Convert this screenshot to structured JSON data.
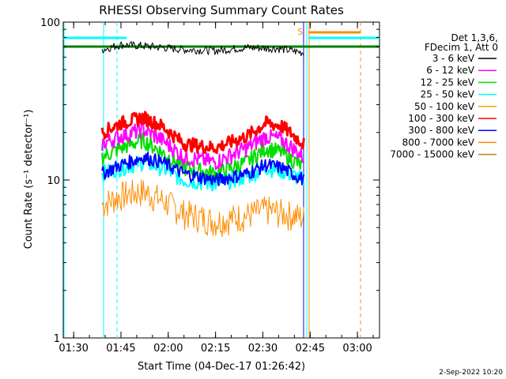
{
  "chart_data": {
    "type": "line",
    "title": "RHESSI Observing Summary Count Rates",
    "xlabel": "Start Time (04-Dec-17 01:26:42)",
    "ylabel": "Count Rate (s⁻¹ detector⁻¹)",
    "ylog": true,
    "xlim": [
      "01:26:42",
      "03:07:00"
    ],
    "ylim": [
      1,
      100
    ],
    "x_ticks": [
      "01:30",
      "01:45",
      "02:00",
      "02:15",
      "02:30",
      "02:45",
      "03:00"
    ],
    "y_ticks": [
      "1",
      "10",
      "100"
    ],
    "legend_header": [
      "Det 1,3,6,",
      "FDecim 1, Att 0"
    ],
    "legend_position": "right",
    "series": [
      {
        "name": "3 - 6 keV",
        "color": "#000000",
        "x": [
          "01:39",
          "01:45",
          "01:55",
          "02:05",
          "02:15",
          "02:25",
          "02:35",
          "02:43"
        ],
        "values": [
          67,
          72,
          70,
          67,
          66,
          69,
          68,
          64
        ]
      },
      {
        "name": "6 - 12 keV",
        "color": "#ff00ff",
        "x": [
          "01:39",
          "01:45",
          "01:52",
          "01:58",
          "02:05",
          "02:15",
          "02:25",
          "02:31",
          "02:36",
          "02:43"
        ],
        "values": [
          17,
          19,
          21,
          18,
          14,
          13,
          16,
          19,
          18,
          14
        ]
      },
      {
        "name": "12 - 25 keV",
        "color": "#00dd00",
        "x": [
          "01:39",
          "01:45",
          "01:52",
          "01:58",
          "02:05",
          "02:15",
          "02:25",
          "02:31",
          "02:36",
          "02:43"
        ],
        "values": [
          14,
          16,
          18,
          15,
          12,
          11,
          13,
          16,
          15,
          12
        ]
      },
      {
        "name": "25 - 50 keV",
        "color": "#00ffff",
        "x": [
          "01:39",
          "01:45",
          "01:52",
          "01:58",
          "02:05",
          "02:15",
          "02:25",
          "02:31",
          "02:36",
          "02:43"
        ],
        "values": [
          11,
          12,
          13,
          12,
          10,
          9.5,
          10.5,
          12,
          11.5,
          10
        ]
      },
      {
        "name": "50 - 100 keV",
        "color": "#ffa500",
        "x": [],
        "values": []
      },
      {
        "name": "100 - 300 keV",
        "color": "#ff0000",
        "x": [
          "01:39",
          "01:45",
          "01:52",
          "01:58",
          "02:05",
          "02:15",
          "02:25",
          "02:31",
          "02:36",
          "02:43"
        ],
        "values": [
          20,
          23,
          25,
          22,
          17,
          16,
          19,
          23,
          22,
          17
        ]
      },
      {
        "name": "300 - 800 keV",
        "color": "#0000ff",
        "x": [
          "01:39",
          "01:45",
          "01:52",
          "01:58",
          "02:05",
          "02:15",
          "02:25",
          "02:31",
          "02:36",
          "02:43"
        ],
        "values": [
          11,
          12.5,
          14,
          13,
          11,
          10,
          11,
          12.5,
          12,
          10
        ]
      },
      {
        "name": "800 - 7000 keV",
        "color": "#ff8c00",
        "x": [
          "01:39",
          "01:45",
          "01:52",
          "01:58",
          "02:05",
          "02:15",
          "02:25",
          "02:31",
          "02:36",
          "02:43"
        ],
        "values": [
          7,
          8,
          8.5,
          7.5,
          6.2,
          5.5,
          6,
          6.5,
          6.2,
          5.8
        ]
      },
      {
        "name": "7000 - 15000 keV",
        "color": "#b8860b",
        "x": [],
        "values": []
      }
    ],
    "markers": [
      {
        "label": "S",
        "color": "#ff8c00",
        "x": "02:43"
      }
    ],
    "attenuator_state_y": 70
  },
  "footer": {
    "date": "2-Sep-2022 10:20"
  }
}
